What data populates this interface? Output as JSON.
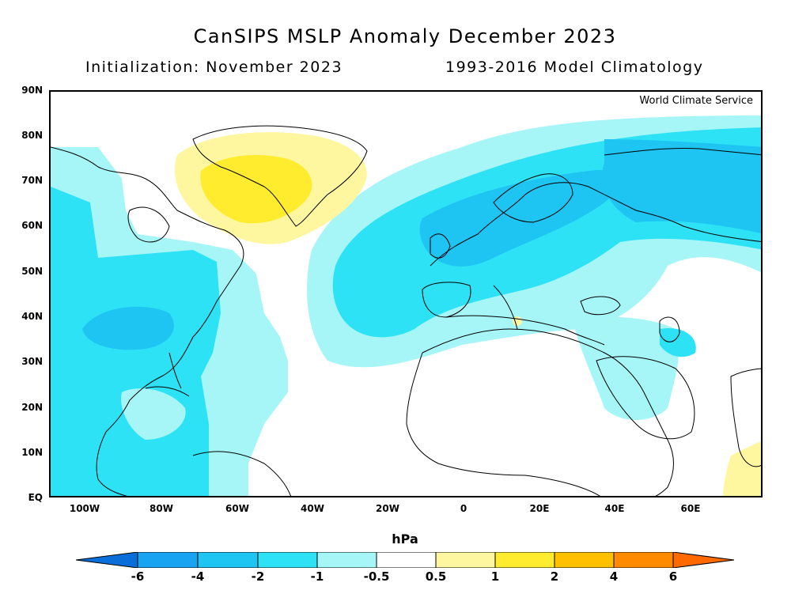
{
  "header": {
    "title": "CanSIPS MSLP Anomaly December 2023",
    "init": "Initialization: November 2023",
    "climatology": "1993-2016 Model Climatology"
  },
  "map": {
    "credit": "World Climate Service",
    "lat_labels": [
      "90N",
      "80N",
      "70N",
      "60N",
      "50N",
      "40N",
      "30N",
      "20N",
      "10N",
      "EQ"
    ],
    "lon_labels": [
      "100W",
      "80W",
      "60W",
      "40W",
      "20W",
      "0",
      "20E",
      "40E",
      "60E"
    ]
  },
  "colorbar": {
    "unit": "hPa",
    "ticks": [
      "-6",
      "-4",
      "-2",
      "-1",
      "-0.5",
      "0.5",
      "1",
      "2",
      "4",
      "6"
    ],
    "colors": [
      "#0a6ed8",
      "#18a4f0",
      "#1ec4f2",
      "#2ee2f5",
      "#a6f6f8",
      "#ffffff",
      "#fff6a0",
      "#ffec2e",
      "#ffc000",
      "#ff8a00",
      "#ff6a00"
    ]
  },
  "colors": {
    "land_outline": "#000000",
    "neg_light": "#a6f6f8",
    "neg_mid": "#2ee2f5",
    "neg_strong": "#1ec4f2",
    "neg_deep": "#18a4f0",
    "pos_light": "#fff6a0",
    "pos_mid": "#ffec2e"
  }
}
